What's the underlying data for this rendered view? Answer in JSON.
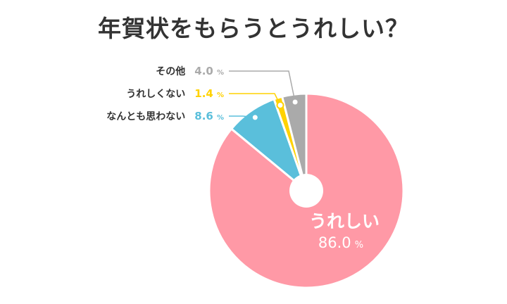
{
  "chart_data": {
    "type": "pie",
    "title": "年賀状をもらうとうれしい？",
    "unit": "%",
    "slices": [
      {
        "label": "うれしい",
        "value": 86.0,
        "display": "86.0",
        "color": "#FF99A6"
      },
      {
        "label": "なんとも思わない",
        "value": 8.6,
        "display": "8.6",
        "color": "#5ABFDB"
      },
      {
        "label": "うれしくない",
        "value": 1.4,
        "display": "1.4",
        "color": "#FFD200"
      },
      {
        "label": "その他",
        "value": 4.0,
        "display": "4.0",
        "color": "#AAAAAA"
      }
    ]
  }
}
